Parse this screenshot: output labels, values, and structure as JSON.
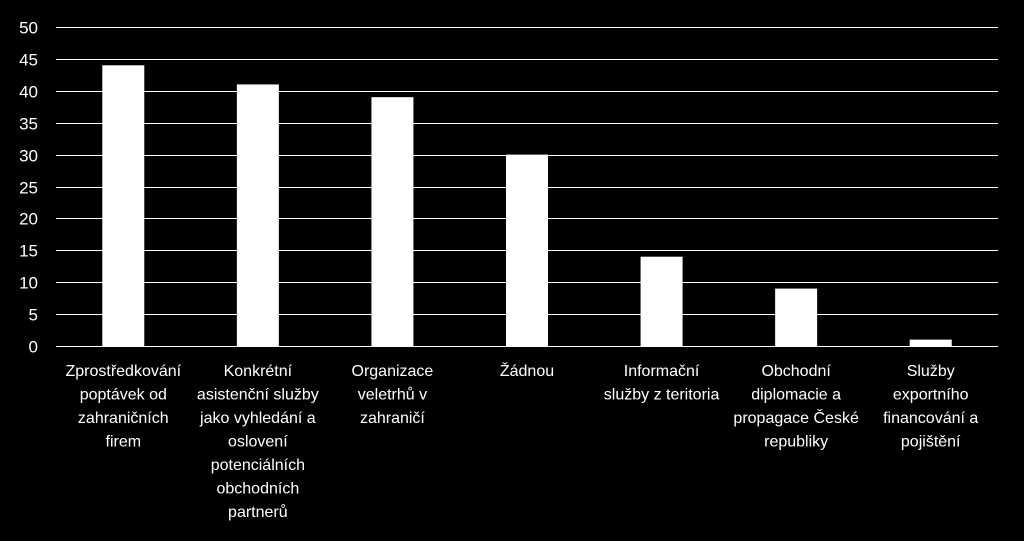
{
  "chart_data": {
    "type": "bar",
    "categories": [
      [
        "Zprostředkování",
        "poptávek od",
        "zahraničních",
        "firem"
      ],
      [
        "Konkrétní",
        "asistenční služby",
        "jako vyhledání a",
        "oslovení",
        "potenciálních",
        "obchodních",
        "partnerů"
      ],
      [
        "Organizace",
        "veletrhů v",
        "zahraničí"
      ],
      [
        "Žádnou"
      ],
      [
        "Informační",
        "služby z teritoria"
      ],
      [
        "Obchodní",
        "diplomacie a",
        "propagace České",
        "republiky"
      ],
      [
        "Služby",
        "exportního",
        "financování a",
        "pojištění"
      ]
    ],
    "values": [
      44,
      41,
      39,
      30,
      14,
      9,
      1
    ],
    "ylim": [
      0,
      50
    ],
    "yticks": [
      0,
      5,
      10,
      15,
      20,
      25,
      30,
      35,
      40,
      45,
      50
    ],
    "grid": true,
    "title": "",
    "xlabel": "",
    "ylabel": "",
    "colors": {
      "background": "#000000",
      "bar": "#ffffff",
      "grid": "#ffffff",
      "text": "#ffffff"
    }
  }
}
